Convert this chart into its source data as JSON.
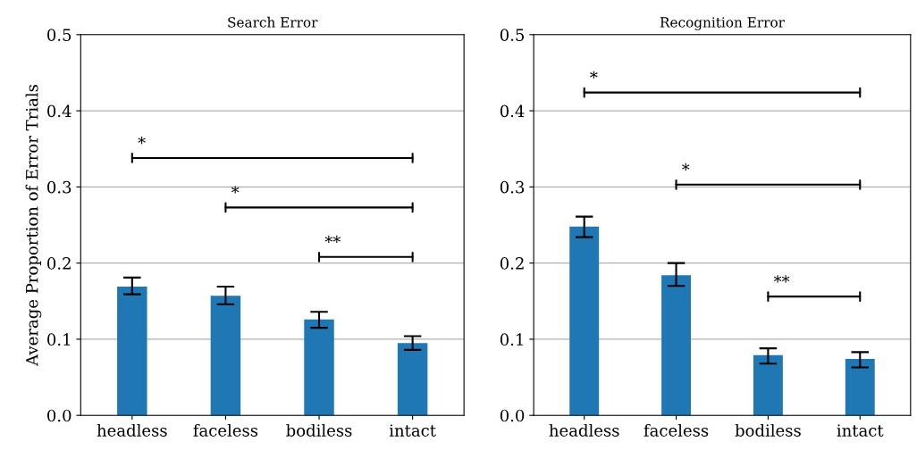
{
  "chart_data": [
    {
      "type": "bar",
      "title": "Search Error",
      "ylabel": "Average Proportion of Error Trials",
      "categories": [
        "headless",
        "faceless",
        "bodiless",
        "intact"
      ],
      "values": [
        0.169,
        0.157,
        0.126,
        0.095
      ],
      "errors": [
        [
          0.159,
          0.181
        ],
        [
          0.146,
          0.169
        ],
        [
          0.115,
          0.136
        ],
        [
          0.086,
          0.104
        ]
      ],
      "color": "#1f77b4",
      "ylim": [
        0,
        0.5
      ],
      "yticks": [
        {
          "value": 0,
          "label": "0.0"
        },
        0.1,
        0.2,
        0.3,
        0.4,
        0.5
      ],
      "grid": "y",
      "annotations": [
        "*",
        "*",
        "**"
      ]
    },
    {
      "type": "bar",
      "title": "Recognition Error",
      "categories": [
        "headless",
        "faceless",
        "bodiless",
        "intact"
      ],
      "values": [
        0.248,
        0.184,
        0.079,
        0.074
      ],
      "errors": [
        [
          0.234,
          0.261
        ],
        [
          0.17,
          0.2
        ],
        [
          0.068,
          0.088
        ],
        [
          0.063,
          0.083
        ]
      ],
      "color": "#1f77b4",
      "ylim": [
        0,
        0.5
      ],
      "yticks": [
        {
          "value": 0,
          "label": "0.0"
        },
        0.1,
        0.2,
        0.3,
        0.4,
        0.5
      ],
      "grid": "y",
      "annotations": [
        "*",
        "*",
        "**"
      ]
    }
  ]
}
